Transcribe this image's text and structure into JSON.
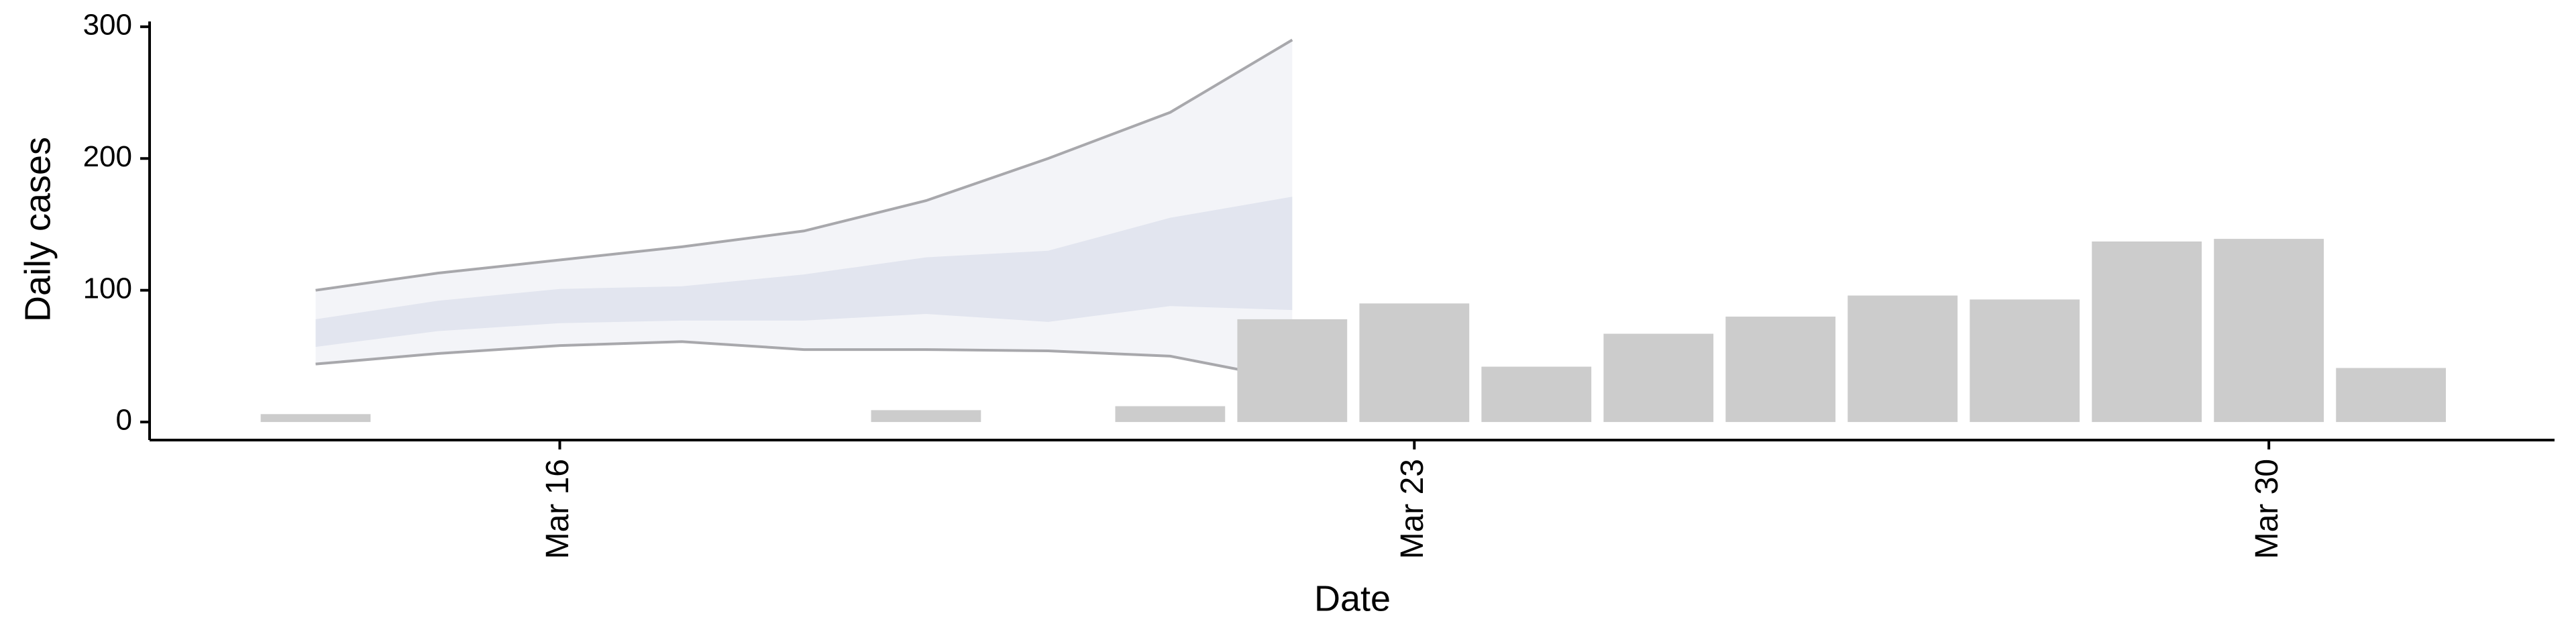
{
  "chart_data": {
    "type": "bar",
    "x_label": "Date",
    "y_label": "Daily cases",
    "x": [
      14,
      15,
      16,
      17,
      18,
      19,
      20,
      21,
      22,
      23,
      24,
      25,
      26,
      27,
      28,
      29,
      30,
      31
    ],
    "values": [
      6,
      0,
      0,
      0,
      0,
      9,
      0,
      12,
      78,
      90,
      42,
      67,
      80,
      96,
      93,
      137,
      139,
      41
    ],
    "color": "#cccccc",
    "band_x": [
      14,
      15,
      16,
      17,
      18,
      19,
      20,
      21,
      22
    ],
    "bands": [
      {
        "lower": [
          44,
          52,
          58,
          61,
          55,
          55,
          54,
          50,
          32
        ],
        "upper": [
          100,
          113,
          123,
          133,
          145,
          168,
          200,
          235,
          290
        ],
        "color": "#f3f4f8",
        "outline": "#a8a8ac"
      },
      {
        "lower": [
          57,
          69,
          75,
          77,
          77,
          82,
          76,
          88,
          85
        ],
        "upper": [
          78,
          92,
          101,
          103,
          112,
          125,
          130,
          155,
          171
        ],
        "color": "#e2e5ef"
      }
    ],
    "xlim": [
      12.64,
      32.34
    ],
    "xticks": [
      {
        "value": 16,
        "label": "Mar 16"
      },
      {
        "value": 23,
        "label": "Mar 23"
      },
      {
        "value": 30,
        "label": "Mar 30"
      }
    ],
    "ylim": [
      -13.7,
      304
    ],
    "yticks": [
      0,
      100,
      200,
      300
    ]
  }
}
